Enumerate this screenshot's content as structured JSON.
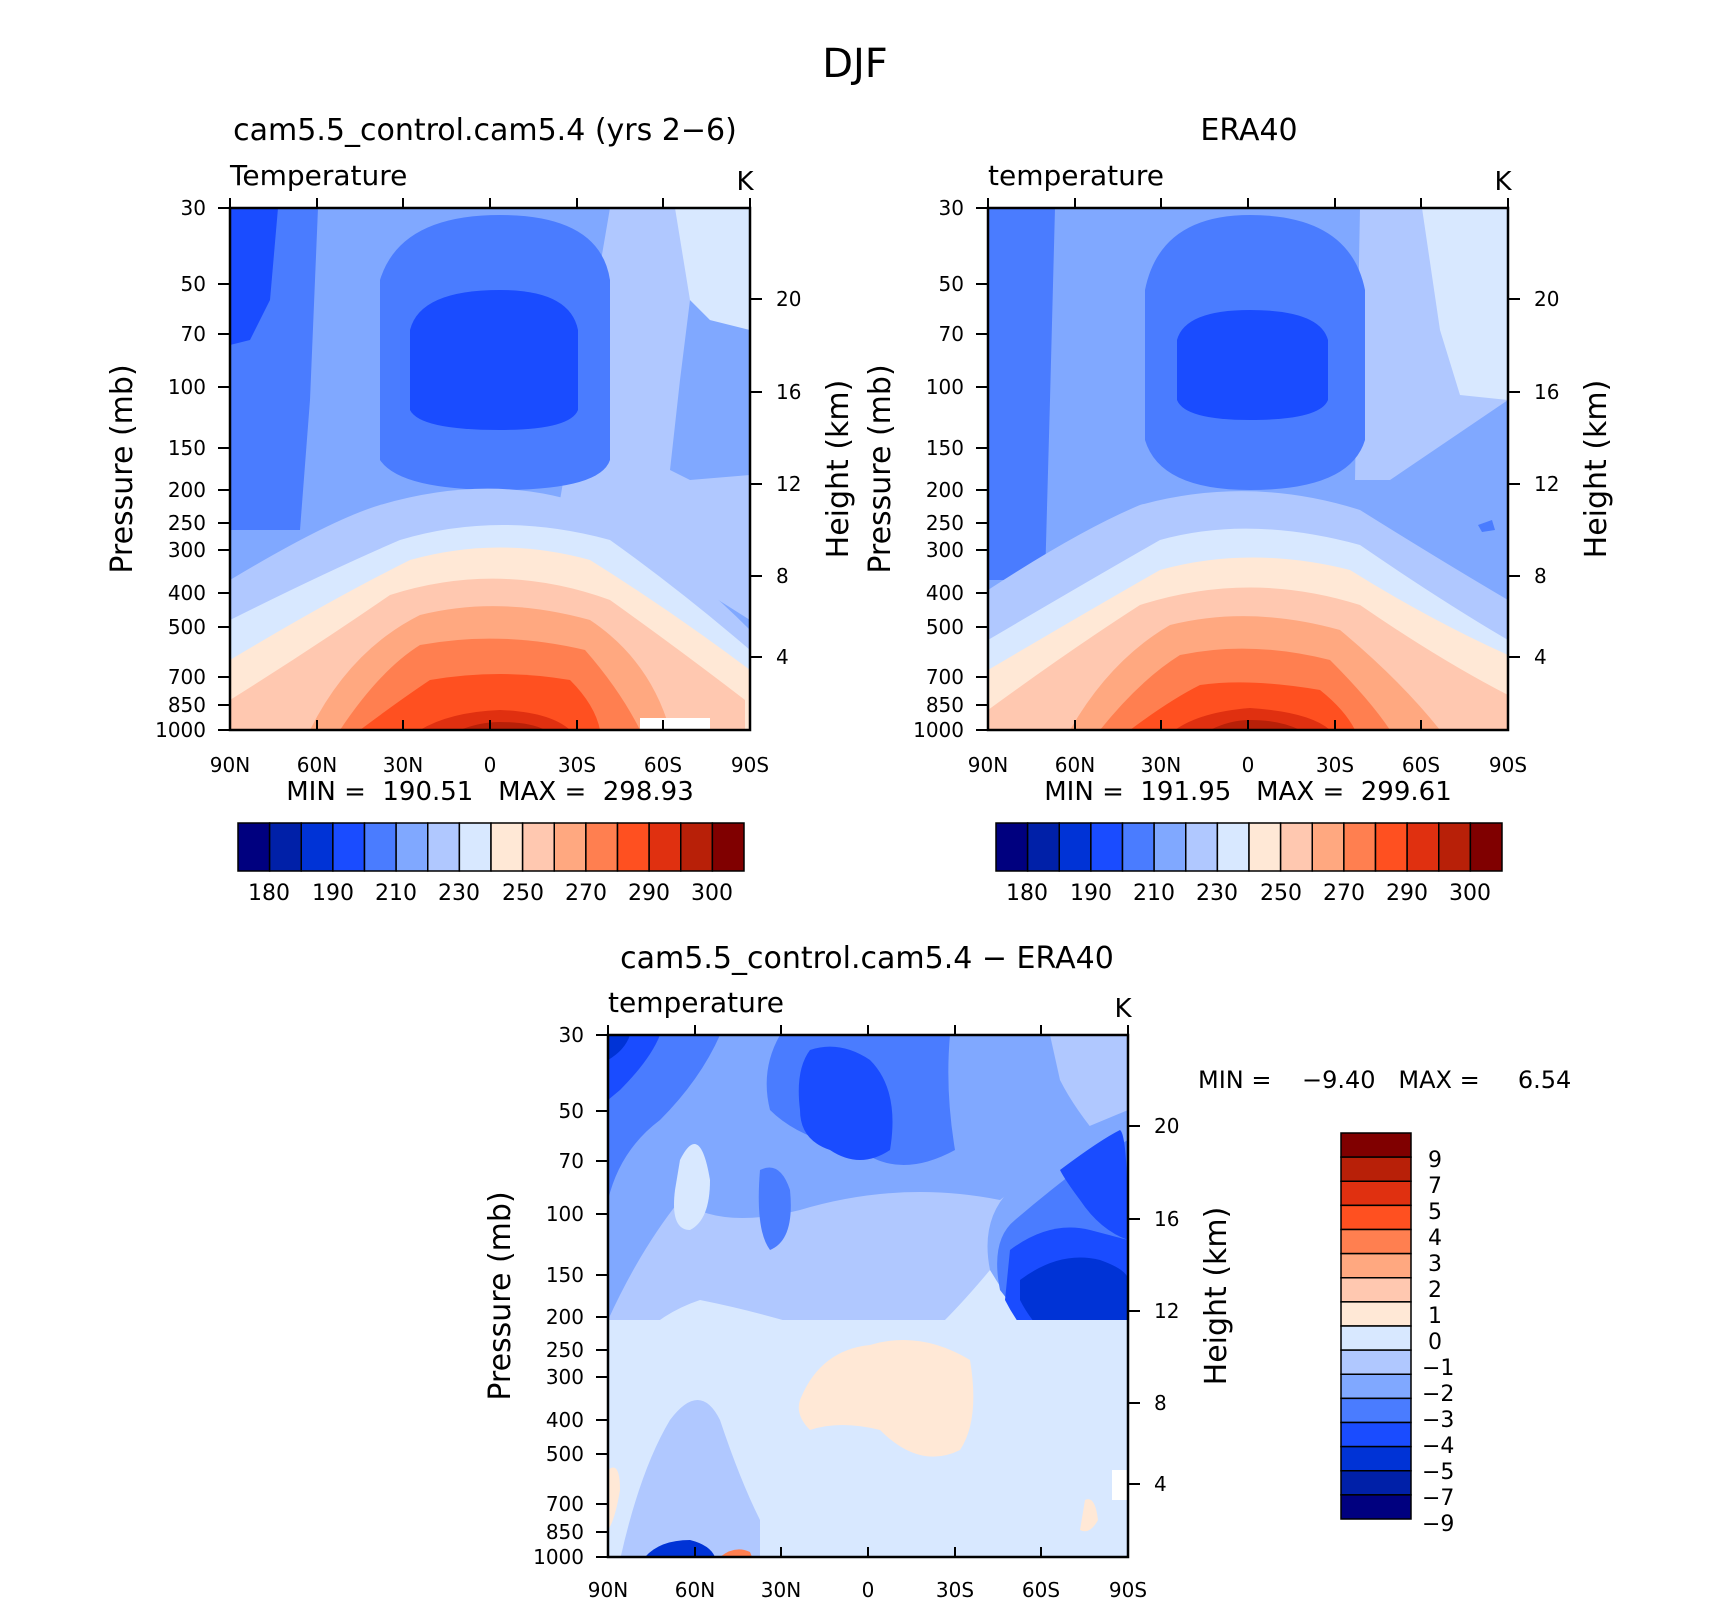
{
  "title": "DJF",
  "colors": {
    "abs_scale": [
      "#00007f",
      "#0020a8",
      "#0033d6",
      "#1a4cff",
      "#4a7cff",
      "#80a8ff",
      "#b0c8ff",
      "#d8e8ff",
      "#ffe8d6",
      "#ffc8b0",
      "#ffa880",
      "#ff7f50",
      "#ff5020",
      "#e03010",
      "#b82008",
      "#800000"
    ],
    "diff_scale": [
      "#00007f",
      "#0020a8",
      "#0033d6",
      "#1a4cff",
      "#4a7cff",
      "#80a8ff",
      "#b0c8ff",
      "#d8e8ff",
      "#ffe8d6",
      "#ffc8b0",
      "#ffa880",
      "#ff7f50",
      "#ff5020",
      "#e03010",
      "#b82008",
      "#800000"
    ]
  },
  "panels": [
    {
      "id": "model",
      "title": "cam5.5_control.cam5.4 (yrs 2−6)",
      "left_label": "Temperature",
      "unit": "K",
      "ylabel": "Pressure (mb)",
      "y2label": "Height (km)",
      "minmax": "MIN =  190.51   MAX =  298.93"
    },
    {
      "id": "obs",
      "title": "ERA40",
      "left_label": "temperature",
      "unit": "K",
      "ylabel": "Pressure (mb)",
      "y2label": "Height (km)",
      "minmax": "MIN =  191.95   MAX =  299.61"
    },
    {
      "id": "diff",
      "title": "cam5.5_control.cam5.4 − ERA40",
      "left_label": "temperature",
      "unit": "K",
      "ylabel": "Pressure (mb)",
      "y2label": "Height (km)",
      "minmax": "MIN =    −9.40   MAX =     6.54"
    }
  ],
  "chart_data": [
    {
      "type": "heatmap",
      "title": "cam5.5_control.cam5.4 (yrs 2−6)",
      "x_ticks": [
        "90N",
        "60N",
        "30N",
        "0",
        "30S",
        "60S",
        "90S"
      ],
      "y_ticks": [
        "30",
        "50",
        "70",
        "100",
        "150",
        "200",
        "250",
        "300",
        "400",
        "500",
        "700",
        "850",
        "1000"
      ],
      "y2_ticks": [
        "20",
        "16",
        "12",
        "8",
        "4"
      ],
      "ylim_mb": [
        1000,
        30
      ],
      "colorbar_labels": [
        "180",
        "190",
        "210",
        "230",
        "250",
        "270",
        "290",
        "300"
      ],
      "min": 190.51,
      "max": 298.93
    },
    {
      "type": "heatmap",
      "title": "ERA40",
      "x_ticks": [
        "90N",
        "60N",
        "30N",
        "0",
        "30S",
        "60S",
        "90S"
      ],
      "y_ticks": [
        "30",
        "50",
        "70",
        "100",
        "150",
        "200",
        "250",
        "300",
        "400",
        "500",
        "700",
        "850",
        "1000"
      ],
      "y2_ticks": [
        "20",
        "16",
        "12",
        "8",
        "4"
      ],
      "ylim_mb": [
        1000,
        30
      ],
      "colorbar_labels": [
        "180",
        "190",
        "210",
        "230",
        "250",
        "270",
        "290",
        "300"
      ],
      "min": 191.95,
      "max": 299.61
    },
    {
      "type": "heatmap",
      "title": "cam5.5_control.cam5.4 − ERA40",
      "x_ticks": [
        "90N",
        "60N",
        "30N",
        "0",
        "30S",
        "60S",
        "90S"
      ],
      "y_ticks": [
        "30",
        "50",
        "70",
        "100",
        "150",
        "200",
        "250",
        "300",
        "400",
        "500",
        "700",
        "850",
        "1000"
      ],
      "y2_ticks": [
        "20",
        "16",
        "12",
        "8",
        "4"
      ],
      "ylim_mb": [
        1000,
        30
      ],
      "colorbar_labels": [
        "9",
        "7",
        "5",
        "4",
        "3",
        "2",
        "1",
        "0",
        "−1",
        "−2",
        "−3",
        "−4",
        "−5",
        "−7",
        "−9"
      ],
      "min": -9.4,
      "max": 6.54
    }
  ]
}
